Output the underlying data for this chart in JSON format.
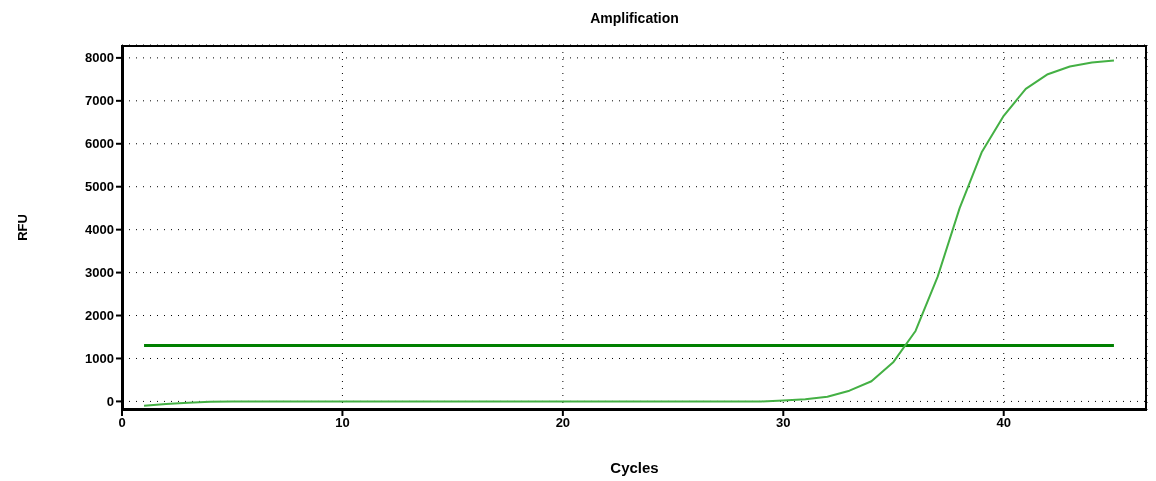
{
  "chart_data": {
    "type": "line",
    "title": "Amplification",
    "xlabel": "Cycles",
    "ylabel": "RFU",
    "x": [
      1,
      2,
      3,
      4,
      5,
      6,
      7,
      8,
      9,
      10,
      11,
      12,
      13,
      14,
      15,
      16,
      17,
      18,
      19,
      20,
      21,
      22,
      23,
      24,
      25,
      26,
      27,
      28,
      29,
      30,
      31,
      32,
      33,
      34,
      35,
      36,
      37,
      38,
      39,
      40,
      41,
      42,
      43,
      44,
      45
    ],
    "series": [
      {
        "color": "#44b044",
        "values": [
          -100,
          -60,
          -30,
          -10,
          0,
          0,
          0,
          0,
          0,
          0,
          0,
          0,
          0,
          0,
          0,
          0,
          0,
          0,
          0,
          0,
          0,
          0,
          0,
          0,
          0,
          0,
          0,
          0,
          0,
          20,
          50,
          110,
          250,
          470,
          920,
          1640,
          2900,
          4500,
          5800,
          6650,
          7280,
          7620,
          7800,
          7890,
          7940
        ]
      }
    ],
    "ref_lines": [
      {
        "axis": "y",
        "value": 1300,
        "color": "#008000"
      }
    ],
    "xlim": [
      0,
      46.5
    ],
    "xticks": [
      0,
      10,
      20,
      30,
      40
    ],
    "ylim": [
      -200,
      8300
    ],
    "yticks": [
      0,
      1000,
      2000,
      3000,
      4000,
      5000,
      6000,
      7000,
      8000
    ],
    "grid": true,
    "marker": "none",
    "line_style": "solid"
  }
}
